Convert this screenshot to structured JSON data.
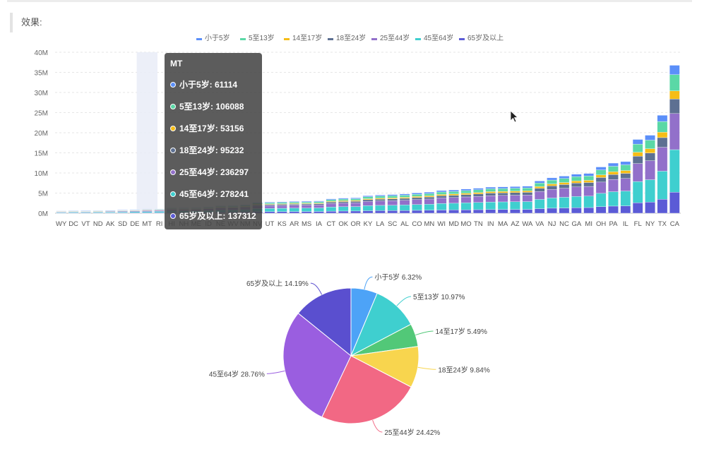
{
  "page": {
    "heading": "效果:"
  },
  "colors": {
    "under5": "#5b8ff9",
    "age5_13": "#5ad8a6",
    "age14_17": "#f6bd16",
    "age18_24": "#5d7092",
    "age25_44": "#9270ca",
    "age45_64": "#3fcfcf",
    "age65": "#5b5bd6"
  },
  "tooltip": {
    "title": "MT",
    "rows": [
      {
        "label": "小于5岁: 61114",
        "color": "#5b8ff9"
      },
      {
        "label": "5至13岁: 106088",
        "color": "#5ad8a6"
      },
      {
        "label": "14至17岁: 53156",
        "color": "#f6bd16"
      },
      {
        "label": "18至24岁: 95232",
        "color": "#5d7092"
      },
      {
        "label": "25至44岁: 236297",
        "color": "#9270ca"
      },
      {
        "label": "45至64岁: 278241",
        "color": "#3fcfcf"
      },
      {
        "label": "65岁及以上: 137312",
        "color": "#5b5bd6"
      }
    ]
  },
  "chart_data": [
    {
      "type": "bar",
      "stacked": true,
      "ylim": [
        0,
        40000000
      ],
      "y_ticks": [
        "0M",
        "5M",
        "10M",
        "15M",
        "20M",
        "25M",
        "30M",
        "35M",
        "40M"
      ],
      "legend_position": "top",
      "highlighted_category": "MT",
      "categories": [
        "WY",
        "DC",
        "VT",
        "ND",
        "AK",
        "SD",
        "DE",
        "MT",
        "RI",
        "HI",
        "NH",
        "ME",
        "ID",
        "NE",
        "WV",
        "NM",
        "NV",
        "UT",
        "KS",
        "AR",
        "MS",
        "IA",
        "CT",
        "OK",
        "OR",
        "KY",
        "LA",
        "SC",
        "AL",
        "CO",
        "MN",
        "WI",
        "MD",
        "MO",
        "TN",
        "IN",
        "MA",
        "AZ",
        "WA",
        "VA",
        "NJ",
        "NC",
        "GA",
        "MI",
        "OH",
        "PA",
        "IL",
        "FL",
        "NY",
        "TX",
        "CA"
      ],
      "totals": [
        0.58,
        0.66,
        0.63,
        0.67,
        0.71,
        0.81,
        0.9,
        0.97,
        1.05,
        1.36,
        1.32,
        1.33,
        1.57,
        1.83,
        1.85,
        2.06,
        2.7,
        2.76,
        2.85,
        2.92,
        2.97,
        3.05,
        3.57,
        3.75,
        3.83,
        4.34,
        4.53,
        4.63,
        4.78,
        5.03,
        5.22,
        5.63,
        5.77,
        6.0,
        6.21,
        6.48,
        6.55,
        6.63,
        6.72,
        8.0,
        8.79,
        9.22,
        9.69,
        9.88,
        11.49,
        12.45,
        12.83,
        18.33,
        19.38,
        24.33,
        36.76
      ],
      "series_shares": [
        {
          "name": "小于5岁",
          "color": "#5b8ff9",
          "share": 0.0632
        },
        {
          "name": "5至13岁",
          "color": "#5ad8a6",
          "share": 0.1097
        },
        {
          "name": "14至17岁",
          "color": "#f6bd16",
          "share": 0.0549
        },
        {
          "name": "18至24岁",
          "color": "#5d7092",
          "share": 0.0984
        },
        {
          "name": "25至44岁",
          "color": "#9270ca",
          "share": 0.2442
        },
        {
          "name": "45至64岁",
          "color": "#3fcfcf",
          "share": 0.2876
        },
        {
          "name": "65岁及以上",
          "color": "#5b5bd6",
          "share": 0.1419
        }
      ],
      "units": "millions"
    },
    {
      "type": "pie",
      "slices": [
        {
          "name": "小于5岁",
          "value": 6.32,
          "label": "小于5岁 6.32%",
          "color": "#4da3f7"
        },
        {
          "name": "5至13岁",
          "value": 10.97,
          "label": "5至13岁 10.97%",
          "color": "#3fcfcf"
        },
        {
          "name": "14至17岁",
          "value": 5.49,
          "label": "14至17岁 5.49%",
          "color": "#52c878"
        },
        {
          "name": "18至24岁",
          "value": 9.84,
          "label": "18至24岁 9.84%",
          "color": "#f8d54e"
        },
        {
          "name": "25至44岁",
          "value": 24.42,
          "label": "25至44岁 24.42%",
          "color": "#f26884"
        },
        {
          "name": "45至64岁",
          "value": 28.76,
          "label": "45至64岁 28.76%",
          "color": "#9a5ee0"
        },
        {
          "name": "65岁及以上",
          "value": 14.19,
          "label": "65岁及以上 14.19%",
          "color": "#5a4fcf"
        }
      ]
    }
  ]
}
